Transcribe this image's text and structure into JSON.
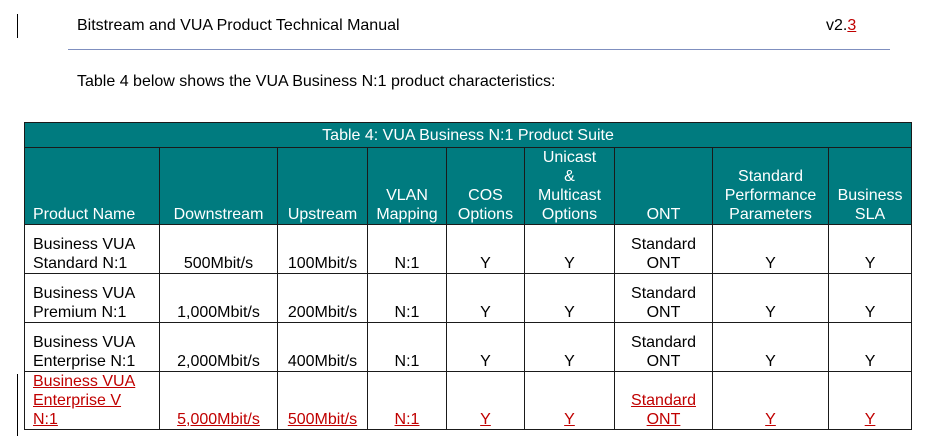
{
  "header": {
    "title": "Bitstream and VUA Product Technical Manual",
    "version_prefix": "v2.",
    "version_changed": "3"
  },
  "intro": "Table 4 below shows the VUA Business N:1 product characteristics:",
  "table": {
    "caption": "Table 4: VUA Business N:1 Product Suite",
    "columns": [
      [
        "Product Name"
      ],
      [
        "Downstream"
      ],
      [
        "Upstream"
      ],
      [
        "VLAN",
        "Mapping"
      ],
      [
        "COS",
        "Options"
      ],
      [
        "Unicast",
        "&",
        "Multicast",
        "Options"
      ],
      [
        "ONT"
      ],
      [
        "Standard",
        "Performance",
        "Parameters"
      ],
      [
        "Business",
        "SLA"
      ]
    ],
    "rows": [
      {
        "name": [
          "Business VUA",
          "Standard N:1"
        ],
        "downstream": "500Mbit/s",
        "upstream": "100Mbit/s",
        "vlan": "N:1",
        "cos": "Y",
        "multicast": "Y",
        "ont": [
          "Standard",
          "ONT"
        ],
        "perf": "Y",
        "sla": "Y"
      },
      {
        "name": [
          "Business VUA",
          "Premium N:1"
        ],
        "downstream": "1,000Mbit/s",
        "upstream": "200Mbit/s",
        "vlan": "N:1",
        "cos": "Y",
        "multicast": "Y",
        "ont": [
          "Standard",
          "ONT"
        ],
        "perf": "Y",
        "sla": "Y"
      },
      {
        "name": [
          "Business VUA",
          "Enterprise N:1"
        ],
        "downstream": "2,000Mbit/s",
        "upstream": "400Mbit/s",
        "vlan": "N:1",
        "cos": "Y",
        "multicast": "Y",
        "ont": [
          "Standard",
          "ONT"
        ],
        "perf": "Y",
        "sla": "Y"
      },
      {
        "name": [
          "Business VUA",
          "Enterprise V",
          "N:1"
        ],
        "downstream": "5,000Mbit/s",
        "upstream": "500Mbit/s",
        "vlan": "N:1",
        "cos": "Y",
        "multicast": "Y",
        "ont": [
          "Standard",
          "ONT"
        ],
        "perf": "Y",
        "sla": "Y"
      }
    ]
  },
  "colors": {
    "table_header": "#007b7f",
    "revision": "#c00000",
    "rule": "#7f8fbf"
  }
}
